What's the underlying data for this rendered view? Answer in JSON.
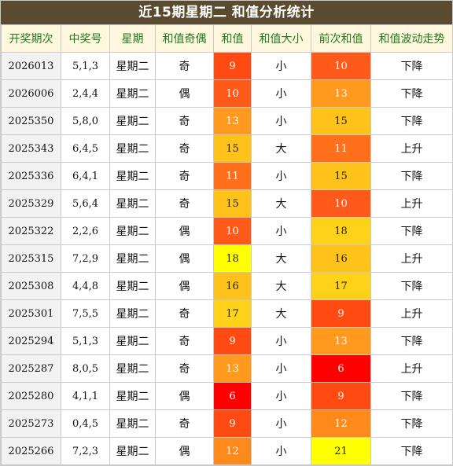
{
  "title": "近15期星期二 和值分析统计",
  "headers": [
    "开奖期次",
    "中奖号",
    "星期",
    "和值奇偶",
    "和值",
    "和值大小",
    "前次和值",
    "和值波动走势"
  ],
  "rows": [
    {
      "period": "2026013",
      "numbers": "5,1,3",
      "weekday": "星期二",
      "parity": "奇",
      "sum": "9",
      "sum_color": "#ff4a11",
      "size": "小",
      "prev": "10",
      "prev_color": "#ff5a1a",
      "trend": "下降"
    },
    {
      "period": "2026006",
      "numbers": "2,4,4",
      "weekday": "星期二",
      "parity": "偶",
      "sum": "10",
      "sum_color": "#ff5a1a",
      "size": "小",
      "prev": "13",
      "prev_color": "#ff9a1e",
      "trend": "下降"
    },
    {
      "period": "2025350",
      "numbers": "5,8,0",
      "weekday": "星期二",
      "parity": "奇",
      "sum": "13",
      "sum_color": "#ff9a1e",
      "size": "小",
      "prev": "15",
      "prev_color": "#ffc21a",
      "trend": "下降"
    },
    {
      "period": "2025343",
      "numbers": "6,4,5",
      "weekday": "星期二",
      "parity": "奇",
      "sum": "15",
      "sum_color": "#ffc21a",
      "size": "大",
      "prev": "11",
      "prev_color": "#ff6f1c",
      "trend": "上升"
    },
    {
      "period": "2025336",
      "numbers": "6,4,1",
      "weekday": "星期二",
      "parity": "奇",
      "sum": "11",
      "sum_color": "#ff6f1c",
      "size": "小",
      "prev": "15",
      "prev_color": "#ffc21a",
      "trend": "下降"
    },
    {
      "period": "2025329",
      "numbers": "5,6,4",
      "weekday": "星期二",
      "parity": "奇",
      "sum": "15",
      "sum_color": "#ffc21a",
      "size": "大",
      "prev": "10",
      "prev_color": "#ff5a1a",
      "trend": "上升"
    },
    {
      "period": "2025322",
      "numbers": "2,2,6",
      "weekday": "星期二",
      "parity": "偶",
      "sum": "10",
      "sum_color": "#ff5a1a",
      "size": "小",
      "prev": "18",
      "prev_color": "#ffd21a",
      "trend": "下降"
    },
    {
      "period": "2025315",
      "numbers": "7,2,9",
      "weekday": "星期二",
      "parity": "偶",
      "sum": "18",
      "sum_color": "#ffff00",
      "size": "大",
      "prev": "16",
      "prev_color": "#ffc21a",
      "trend": "上升"
    },
    {
      "period": "2025308",
      "numbers": "4,4,8",
      "weekday": "星期二",
      "parity": "偶",
      "sum": "16",
      "sum_color": "#ffc21a",
      "size": "大",
      "prev": "17",
      "prev_color": "#ffd21a",
      "trend": "下降"
    },
    {
      "period": "2025301",
      "numbers": "7,5,5",
      "weekday": "星期二",
      "parity": "奇",
      "sum": "17",
      "sum_color": "#ffd21a",
      "size": "大",
      "prev": "9",
      "prev_color": "#ff4a11",
      "trend": "上升"
    },
    {
      "period": "2025294",
      "numbers": "5,1,3",
      "weekday": "星期二",
      "parity": "奇",
      "sum": "9",
      "sum_color": "#ff4a11",
      "size": "小",
      "prev": "13",
      "prev_color": "#ff9a1e",
      "trend": "下降"
    },
    {
      "period": "2025287",
      "numbers": "8,0,5",
      "weekday": "星期二",
      "parity": "奇",
      "sum": "13",
      "sum_color": "#ff9a1e",
      "size": "小",
      "prev": "6",
      "prev_color": "#ff0000",
      "trend": "上升"
    },
    {
      "period": "2025280",
      "numbers": "4,1,1",
      "weekday": "星期二",
      "parity": "偶",
      "sum": "6",
      "sum_color": "#ff0000",
      "size": "小",
      "prev": "9",
      "prev_color": "#ff4a11",
      "trend": "下降"
    },
    {
      "period": "2025273",
      "numbers": "0,4,5",
      "weekday": "星期二",
      "parity": "奇",
      "sum": "9",
      "sum_color": "#ff4a11",
      "size": "小",
      "prev": "12",
      "prev_color": "#ff8a1c",
      "trend": "下降"
    },
    {
      "period": "2025266",
      "numbers": "7,2,3",
      "weekday": "星期二",
      "parity": "偶",
      "sum": "12",
      "sum_color": "#ff8a1c",
      "size": "小",
      "prev": "21",
      "prev_color": "#ffff00",
      "trend": "下降"
    }
  ]
}
